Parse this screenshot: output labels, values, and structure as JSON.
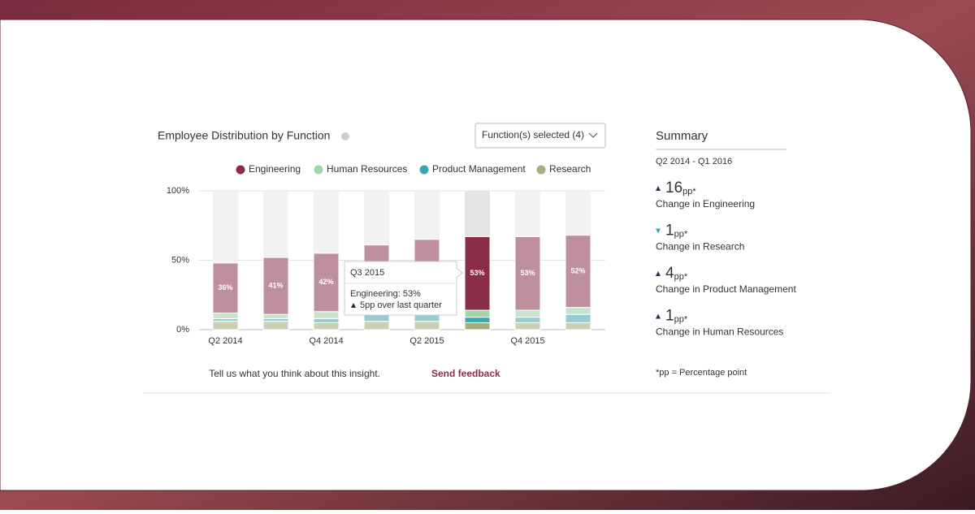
{
  "header": {
    "title": "Employee Distribution by Function",
    "dropdown": "Function(s) selected (4)"
  },
  "chart_data": {
    "type": "stacked_bar",
    "categories": [
      "Q2 2014",
      null,
      "Q4 2014",
      null,
      "Q2 2015",
      null,
      "Q4 2015",
      null
    ],
    "series": [
      {
        "name": "Engineering",
        "color": "#8a2e48",
        "values": [
          36,
          41,
          42,
          46,
          48,
          53,
          53,
          52
        ],
        "value_labels": [
          "36%",
          "41%",
          "42%",
          null,
          null,
          "53%",
          "53%",
          "52%"
        ]
      },
      {
        "name": "Human Resources",
        "color": "#9fd8a8",
        "values": [
          4,
          3,
          5,
          4,
          6,
          5,
          5,
          5
        ]
      },
      {
        "name": "Product Management",
        "color": "#3aa6b0",
        "values": [
          2,
          2,
          3,
          5,
          5,
          4,
          4,
          6
        ]
      },
      {
        "name": "Research",
        "color": "#a4ad7c",
        "values": [
          6,
          6,
          5,
          6,
          6,
          5,
          5,
          5
        ]
      }
    ],
    "ylim": [
      0,
      100
    ],
    "yticks": [
      {
        "value": 0,
        "label": "0%"
      },
      {
        "value": 50,
        "label": "50%"
      },
      {
        "value": 100,
        "label": "100%"
      }
    ],
    "grid": true,
    "legend": "top",
    "highlight": 5,
    "tooltip": {
      "title": "Q3 2015",
      "line": "Engineering: 53%",
      "change": "5pp over last quarter"
    }
  },
  "feedback": {
    "text": "Tell us what you think about this insight.",
    "link": "Send feedback"
  },
  "summary": {
    "title": "Summary",
    "period": "Q2 2014 - Q1 2016",
    "items": [
      {
        "value": 16,
        "unit": "pp*",
        "label": "Change in Engineering",
        "direction": "up"
      },
      {
        "value": 1,
        "unit": "pp*",
        "label": "Change in Research",
        "direction": "down"
      },
      {
        "value": 4,
        "unit": "pp*",
        "label": "Change in Product Management",
        "direction": "up"
      },
      {
        "value": 1,
        "unit": "pp*",
        "label": "Change in Human Resources",
        "direction": "up"
      }
    ],
    "footnote": "*pp = Percentage point"
  }
}
